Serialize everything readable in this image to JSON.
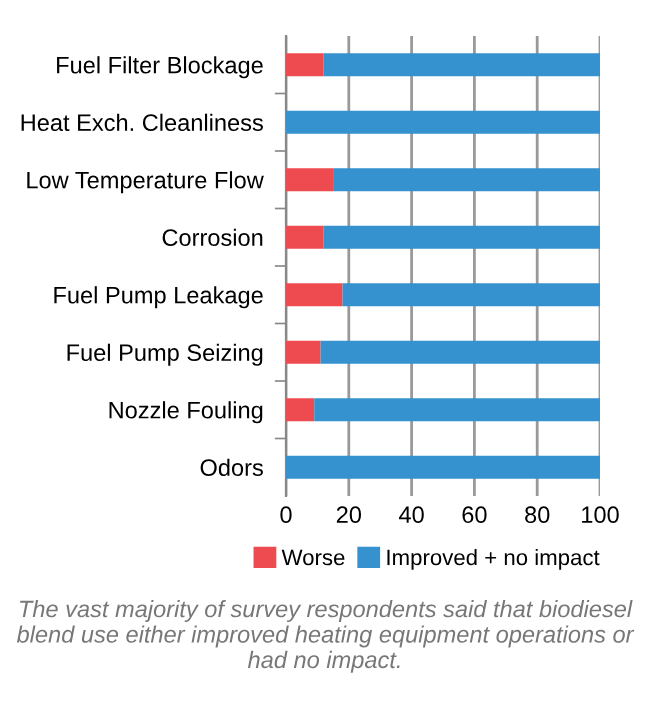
{
  "chart_data": {
    "type": "bar",
    "orientation": "horizontal",
    "stacked": true,
    "categories": [
      "Fuel Filter Blockage",
      "Heat Exch. Cleanliness",
      "Low Temperature Flow",
      "Corrosion",
      "Fuel Pump Leakage",
      "Fuel Pump Seizing",
      "Nozzle Fouling",
      "Odors"
    ],
    "series": [
      {
        "name": "Worse",
        "color": "#ee4b50",
        "values": [
          12,
          0,
          15,
          12,
          18,
          11,
          9,
          0
        ]
      },
      {
        "name": "Improved + no impact",
        "color": "#3592cf",
        "values": [
          88,
          100,
          85,
          88,
          82,
          89,
          91,
          100
        ]
      }
    ],
    "xlim": [
      0,
      100
    ],
    "xticks": [
      0,
      20,
      40,
      60,
      80,
      100
    ],
    "grid": "x",
    "legend": "bottom",
    "annotations": [
      "The vast majority of survey respondents said that biodiesel blend use either improved heating equipment operations or had no impact."
    ]
  }
}
